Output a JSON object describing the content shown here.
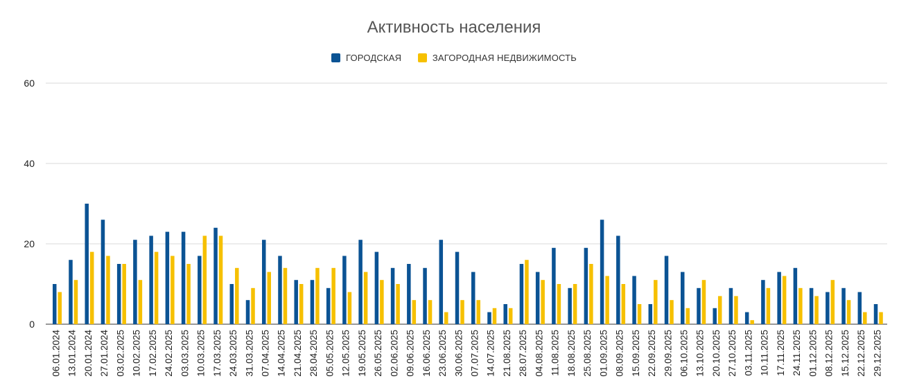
{
  "chart_data": {
    "type": "bar",
    "title": "Активность населения",
    "xlabel": "",
    "ylabel": "",
    "ylim": [
      0,
      60
    ],
    "yticks": [
      0,
      20,
      40,
      60
    ],
    "grid": true,
    "legend_position": "top",
    "categories": [
      "06.01.2024",
      "13.01.2024",
      "20.01.2024",
      "27.01.2024",
      "03.02.2025",
      "10.02.2025",
      "17.02.2025",
      "24.02.2025",
      "03.03.2025",
      "10.03.2025",
      "17.03.2025",
      "24.03.2025",
      "31.03.2025",
      "07.04.2025",
      "14.04.2025",
      "21.04.2025",
      "28.04.2025",
      "05.05.2025",
      "12.05.2025",
      "19.05.2025",
      "26.05.2025",
      "02.06.2025",
      "09.06.2025",
      "16.06.2025",
      "23.06.2025",
      "30.06.2025",
      "07.07.2025",
      "14.07.2025",
      "21.08.2025",
      "28.07.2025",
      "04.08.2025",
      "11.08.2025",
      "18.08.2025",
      "25.08.2025",
      "01.09.2025",
      "08.09.2025",
      "15.09.2025",
      "22.09.2025",
      "29.09.2025",
      "06.10.2025",
      "13.10.2025",
      "20.10.2025",
      "27.10.2025",
      "03.11.2025",
      "10.11.2025",
      "17.11.2025",
      "24.11.2025",
      "01.12.2025",
      "08.12.2025",
      "15.12.2025",
      "22.12.2025",
      "29.12.2025"
    ],
    "series": [
      {
        "name": "ГОРОДСКАЯ",
        "color": "#0b5394",
        "values": [
          10,
          16,
          30,
          26,
          15,
          21,
          22,
          23,
          23,
          17,
          24,
          10,
          6,
          21,
          17,
          11,
          11,
          9,
          17,
          21,
          18,
          14,
          15,
          14,
          21,
          18,
          13,
          3,
          5,
          15,
          13,
          19,
          9,
          19,
          26,
          22,
          12,
          5,
          17,
          13,
          9,
          4,
          9,
          3,
          11,
          13,
          14,
          9,
          8,
          9,
          8,
          5
        ]
      },
      {
        "name": "ЗАГОРОДНАЯ НЕДВИЖИМОСТЬ",
        "color": "#f6c000",
        "values": [
          8,
          11,
          18,
          17,
          15,
          11,
          18,
          17,
          15,
          22,
          22,
          14,
          9,
          13,
          14,
          10,
          14,
          14,
          8,
          13,
          11,
          10,
          6,
          6,
          3,
          6,
          6,
          4,
          4,
          16,
          11,
          10,
          10,
          15,
          12,
          10,
          5,
          11,
          6,
          4,
          11,
          7,
          7,
          1,
          9,
          12,
          9,
          7,
          11,
          6,
          3,
          3
        ]
      }
    ]
  },
  "legend": {
    "items": [
      {
        "label": "ГОРОДСКАЯ",
        "color": "#0b5394"
      },
      {
        "label": "ЗАГОРОДНАЯ НЕДВИЖИМОСТЬ",
        "color": "#f6c000"
      }
    ]
  }
}
